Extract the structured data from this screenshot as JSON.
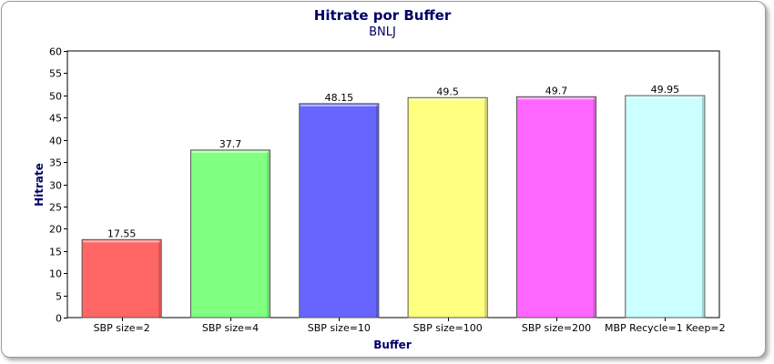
{
  "chart_data": {
    "type": "bar",
    "title": "Hitrate por Buffer",
    "subtitle": "BNLJ",
    "xlabel": "Buffer",
    "ylabel": "Hitrate",
    "ylim": [
      0,
      60
    ],
    "ytick_step": 5,
    "grid": false,
    "legend": "none",
    "categories": [
      "SBP size=2",
      "SBP size=4",
      "SBP size=10",
      "SBP size=100",
      "SBP size=200",
      "MBP Recycle=1 Keep=2"
    ],
    "values": [
      17.55,
      37.7,
      48.15,
      49.5,
      49.7,
      49.95
    ],
    "value_labels": [
      "17.55",
      "37.7",
      "48.15",
      "49.5",
      "49.7",
      "49.95"
    ],
    "colors": [
      "#ff6666",
      "#80ff80",
      "#6666ff",
      "#ffff80",
      "#ff66ff",
      "#ccffff"
    ]
  }
}
